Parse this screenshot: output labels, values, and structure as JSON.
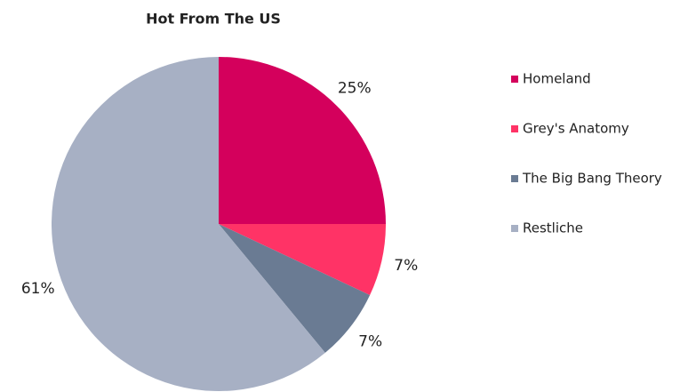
{
  "chart_data": {
    "type": "pie",
    "title": "Hot From The US",
    "categories": [
      "Homeland",
      "Grey's Anatomy",
      "The Big Bang Theory",
      "Restliche"
    ],
    "values": [
      25,
      7,
      7,
      61
    ],
    "value_labels": [
      "25%",
      "7%",
      "7%",
      "61%"
    ],
    "colors": [
      "#d4005c",
      "#ff3366",
      "#6a7b93",
      "#a7b0c4"
    ],
    "legend": "right"
  }
}
